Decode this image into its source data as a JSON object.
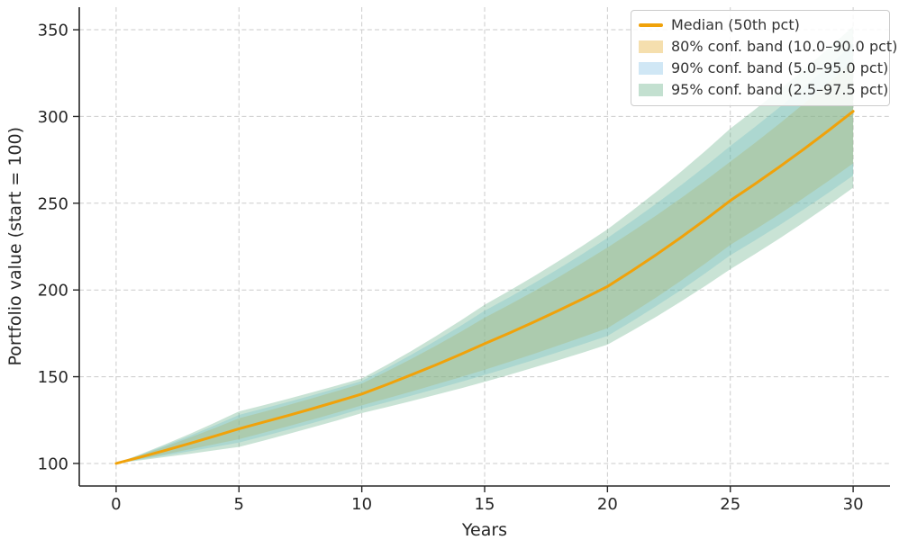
{
  "axes": {
    "xlabel": "Years",
    "ylabel": "Portfolio value (start = 100)"
  },
  "legend": {
    "position": "upper right",
    "items": [
      {
        "label": "Median (50th pct)",
        "type": "line",
        "swatch_color": "#f0a20a"
      },
      {
        "label": "80% conf. band (10.0–90.0 pct)",
        "type": "patch",
        "swatch_color": "#f5dfae"
      },
      {
        "label": "90% conf. band (5.0–95.0 pct)",
        "type": "patch",
        "swatch_color": "#d0e7f5"
      },
      {
        "label": "95% conf. band (2.5–97.5 pct)",
        "type": "patch",
        "swatch_color": "#c3e0d0"
      }
    ]
  },
  "colors": {
    "median_line": "#f0a20a",
    "band_80_base": "#ffa500",
    "band_90_base": "#87ceeb",
    "band_95_base": "#58a87d",
    "grid": "#cbcbcb",
    "spine": "#262626",
    "tick_text": "#262626"
  },
  "chart_data": {
    "type": "line",
    "title": "",
    "xlabel": "Years",
    "ylabel": "Portfolio value (start = 100)",
    "x": [
      0,
      5,
      10,
      15,
      20,
      25,
      30
    ],
    "x_ticks": [
      0,
      5,
      10,
      15,
      20,
      25,
      30
    ],
    "y_ticks": [
      100,
      150,
      200,
      250,
      300,
      350
    ],
    "xlim": [
      -1.5,
      31.5
    ],
    "ylim": [
      87,
      363
    ],
    "grid": "dashed",
    "legend_position": "upper right",
    "interpolation": "geometric-yearly",
    "series": [
      {
        "name": "median",
        "label": "Median (50th pct)",
        "values": [
          100,
          120,
          140,
          169,
          202,
          251.5,
          303
        ]
      },
      {
        "name": "p2.5",
        "label": "2.5th percentile",
        "values": [
          100,
          109.5,
          129,
          147,
          168.5,
          212,
          259
        ]
      },
      {
        "name": "p5",
        "label": "5th percentile",
        "values": [
          100,
          112,
          131.5,
          151,
          173.5,
          220,
          266
        ]
      },
      {
        "name": "p10",
        "label": "10th percentile",
        "values": [
          100,
          114,
          133.5,
          154,
          178,
          226,
          273
        ]
      },
      {
        "name": "p90",
        "label": "90th percentile",
        "values": [
          100,
          126,
          146,
          184,
          224.5,
          274,
          332
        ]
      },
      {
        "name": "p95",
        "label": "95th percentile",
        "values": [
          100,
          128,
          147.5,
          188,
          230,
          283,
          342
        ]
      },
      {
        "name": "p97.5",
        "label": "97.5th percentile",
        "values": [
          100,
          130,
          149,
          191.5,
          235,
          293,
          352
        ]
      }
    ],
    "bands": [
      {
        "label": "80% conf. band (10.0–90.0 pct)",
        "lower": "p10",
        "upper": "p90",
        "color": "#ffa500",
        "opacity": 0.3
      },
      {
        "label": "90% conf. band (5.0–95.0 pct)",
        "lower": "p5",
        "upper": "p95",
        "color": "#87ceeb",
        "opacity": 0.35
      },
      {
        "label": "95% conf. band (2.5–97.5 pct)",
        "lower": "p2.5",
        "upper": "p97.5",
        "color": "#58a87d",
        "opacity": 0.32
      }
    ]
  }
}
